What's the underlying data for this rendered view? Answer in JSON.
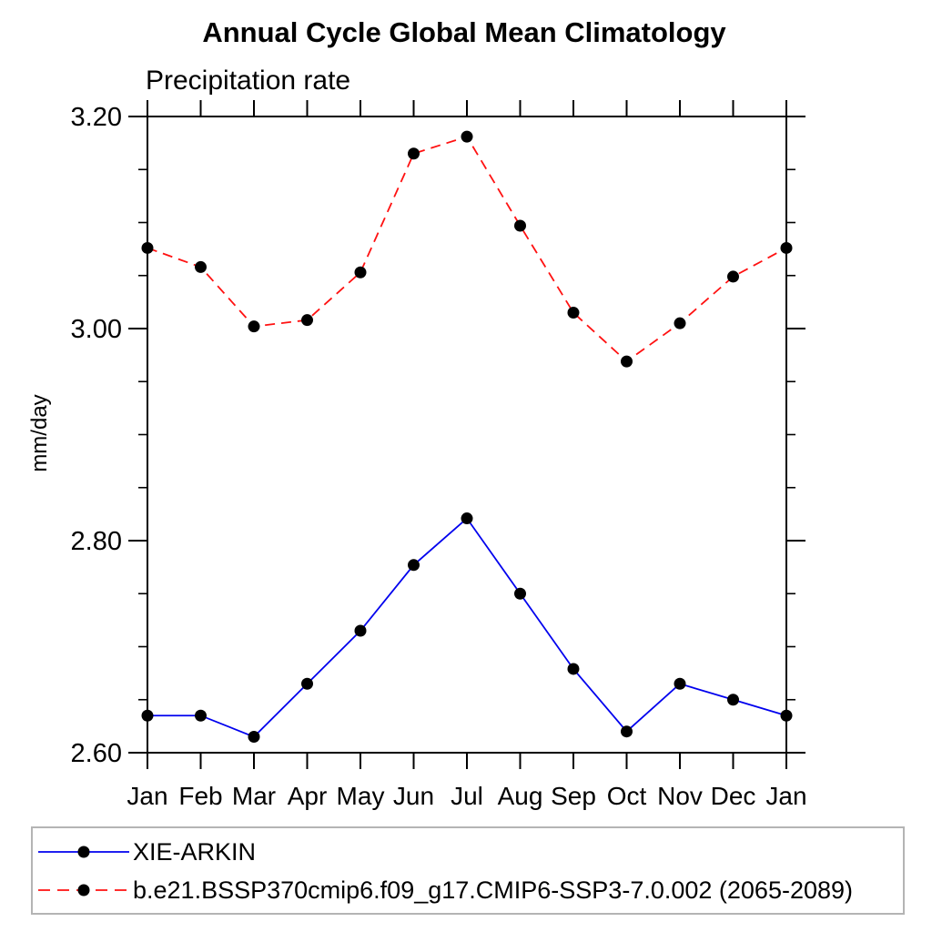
{
  "chart_data": {
    "type": "line",
    "title": "Annual Cycle Global Mean Climatology",
    "subtitle": "Precipitation rate",
    "ylabel": "mm/day",
    "xlabel": "",
    "categories": [
      "Jan",
      "Feb",
      "Mar",
      "Apr",
      "May",
      "Jun",
      "Jul",
      "Aug",
      "Sep",
      "Oct",
      "Nov",
      "Dec",
      "Jan"
    ],
    "ylim": [
      2.6,
      3.2
    ],
    "yticks_major": [
      2.6,
      2.8,
      3.0,
      3.2
    ],
    "ytick_labels": [
      "2.60",
      "2.80",
      "3.00",
      "3.20"
    ],
    "yticks_minor": [
      2.65,
      2.7,
      2.75,
      2.85,
      2.9,
      2.95,
      3.05,
      3.1,
      3.15
    ],
    "grid": false,
    "legend_position": "bottom",
    "axis_color": "#000000",
    "marker_color": "#000000",
    "series": [
      {
        "name": "XIE-ARKIN",
        "color": "#0000ee",
        "style": "solid",
        "marker": "circle",
        "values": [
          2.635,
          2.635,
          2.615,
          2.665,
          2.715,
          2.777,
          2.821,
          2.75,
          2.679,
          2.62,
          2.665,
          2.65,
          2.635
        ]
      },
      {
        "name": "b.e21.BSSP370cmip6.f09_g17.CMIP6-SSP3-7.0.002 (2065-2089)",
        "color": "#ff1111",
        "style": "dashed",
        "marker": "circle",
        "values": [
          3.076,
          3.058,
          3.002,
          3.008,
          3.053,
          3.165,
          3.181,
          3.097,
          3.015,
          2.969,
          3.005,
          3.049,
          3.076
        ]
      }
    ]
  }
}
